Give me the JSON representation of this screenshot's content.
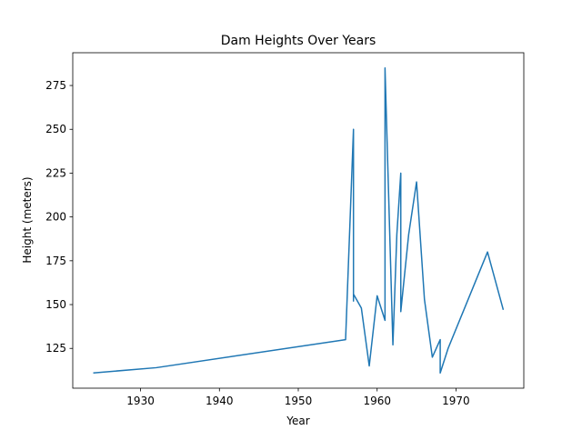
{
  "chart_data": {
    "type": "line",
    "title": "Dam Heights Over Years",
    "xlabel": "Year",
    "ylabel": "Height (meters)",
    "xlim": [
      1921.4,
      1978.6
    ],
    "ylim": [
      102.3,
      293.7
    ],
    "xticks": [
      1930,
      1940,
      1950,
      1960,
      1970
    ],
    "yticks": [
      125,
      150,
      175,
      200,
      225,
      250,
      275
    ],
    "grid": false,
    "line_color": "#1f77b4",
    "series": [
      {
        "x": [
          1924,
          1932,
          1956,
          1957,
          1957,
          1957,
          1958,
          1959,
          1960,
          1961,
          1961,
          1962,
          1962.5,
          1963,
          1963,
          1964,
          1965,
          1966,
          1967,
          1968,
          1968,
          1969,
          1974,
          1976
        ],
        "values": [
          111,
          114,
          130,
          250,
          152,
          156,
          148,
          115,
          155,
          141,
          285,
          127,
          190,
          225,
          146,
          190,
          220,
          153,
          120,
          130,
          111,
          125,
          180,
          147
        ]
      }
    ]
  }
}
